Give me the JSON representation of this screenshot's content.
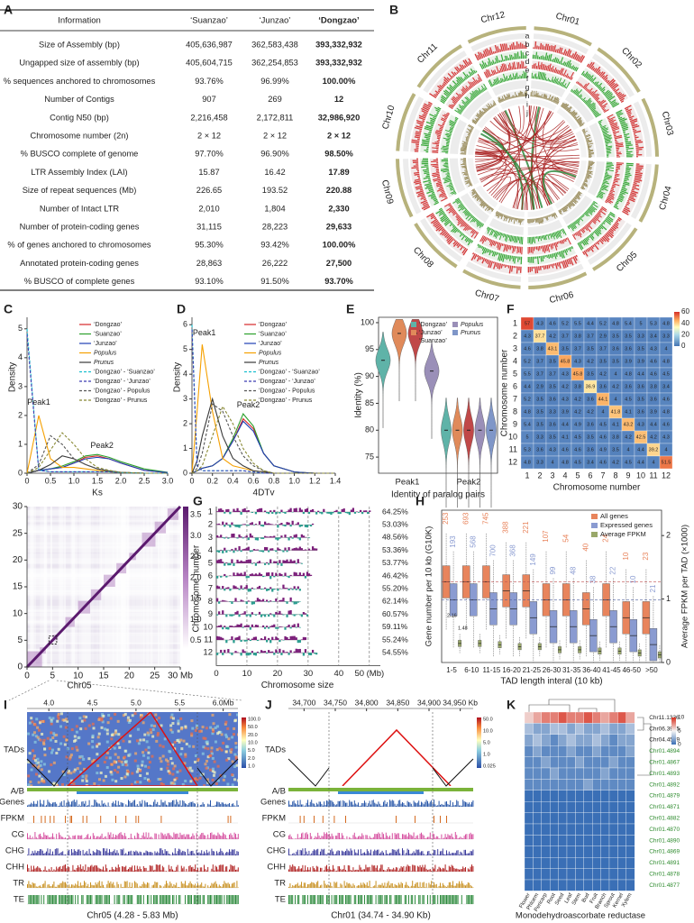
{
  "panel_labels": [
    "A",
    "B",
    "C",
    "D",
    "E",
    "F",
    "G",
    "H",
    "I",
    "J",
    "K"
  ],
  "table": {
    "header": [
      "Information",
      "‘Suanzao’",
      "‘Junzao’",
      "‘Dongzao’"
    ],
    "rows": [
      [
        "Size of Assembly (bp)",
        "405,636,987",
        "362,583,438",
        "393,332,932"
      ],
      [
        "Ungapped size of assembly (bp)",
        "405,604,715",
        "362,254,853",
        "393,332,932"
      ],
      [
        "% sequences anchored to chromosomes",
        "93.76%",
        "96.99%",
        "100.00%"
      ],
      [
        "Number of Contigs",
        "907",
        "269",
        "12"
      ],
      [
        "Contig N50 (bp)",
        "2,216,458",
        "2,172,811",
        "32,986,920"
      ],
      [
        "Chromosome number (2n)",
        "2 × 12",
        "2 × 12",
        "2 × 12"
      ],
      [
        "% BUSCO complete of genome",
        "97.70%",
        "96.90%",
        "98.50%"
      ],
      [
        "LTR Assembly Index (LAI)",
        "15.87",
        "16.42",
        "17.89"
      ],
      [
        "Size of repeat sequences (Mb)",
        "226.65",
        "193.52",
        "220.88"
      ],
      [
        "Number of Intact LTR",
        "2,010",
        "1,804",
        "2,330"
      ],
      [
        "Number of protein-coding genes",
        "31,115",
        "28,223",
        "29,633"
      ],
      [
        "% of genes anchored to chromosomes",
        "95.30%",
        "93.42%",
        "100.00%"
      ],
      [
        "Annotated protein-coding genes",
        "28,863",
        "26,222",
        "27,500"
      ],
      [
        "% BUSCO of complete genes",
        "93.10%",
        "91.50%",
        "93.70%"
      ]
    ]
  },
  "circos": {
    "chromosomes": [
      "Chr01",
      "Chr02",
      "Chr03",
      "Chr04",
      "Chr05",
      "Chr06",
      "Chr07",
      "Chr08",
      "Chr09",
      "Chr10",
      "Chr11",
      "Chr12"
    ],
    "tracks": [
      "a",
      "b",
      "c",
      "d",
      "e",
      "f",
      "g",
      "h",
      "i",
      "j"
    ]
  },
  "ks": {
    "type": "line",
    "xlabel": "Ks",
    "ylabel": "Density",
    "x": [
      0,
      0.25,
      0.5,
      0.75,
      1,
      1.25,
      1.5,
      1.75,
      2,
      2.5,
      3
    ],
    "xlim": [
      0,
      3
    ],
    "xticks": [
      0,
      0.5,
      {
        "value": 1,
        "label": "1.0"
      },
      1.5,
      {
        "value": 2,
        "label": "2.0"
      },
      2.5,
      {
        "value": 3,
        "label": "3.0"
      }
    ],
    "ylim": [
      0,
      5.4
    ],
    "yticks": [
      0,
      1,
      2,
      3,
      4,
      5
    ],
    "annotations": [
      "Peak1",
      "Peak2"
    ],
    "series": [
      {
        "name": "‘Dongzao’",
        "color": "#d62728",
        "values": [
          0,
          0.1,
          0.15,
          0.2,
          0.35,
          0.55,
          0.6,
          0.5,
          0.35,
          0.1,
          0.02
        ]
      },
      {
        "name": "‘Suanzao’",
        "color": "#2ca02c",
        "values": [
          0,
          0.1,
          0.15,
          0.25,
          0.4,
          0.6,
          0.65,
          0.55,
          0.4,
          0.15,
          0.03
        ]
      },
      {
        "name": "‘Junzao’",
        "color": "#1f3fb4",
        "values": [
          0,
          0.1,
          0.15,
          0.2,
          0.35,
          0.5,
          0.55,
          0.5,
          0.35,
          0.1,
          0.02
        ]
      },
      {
        "name": "Populus",
        "color": "#f5a000",
        "italic": true,
        "values": [
          0,
          2.0,
          0.5,
          0.2,
          0.2,
          0.15,
          0.1,
          0.05,
          0.02,
          0,
          0
        ]
      },
      {
        "name": "Prunus",
        "color": "#3a3a3a",
        "italic": true,
        "values": [
          0,
          0.1,
          0.3,
          0.6,
          0.5,
          0.3,
          0.15,
          0.08,
          0.03,
          0,
          0
        ]
      },
      {
        "name": "‘Dongzao’ - ‘Suanzao’",
        "color": "#17becf",
        "dash": true,
        "values": [
          5,
          0.1,
          0.05,
          0.05,
          0.05,
          0.05,
          0.05,
          0.05,
          0.02,
          0,
          0
        ]
      },
      {
        "name": "‘Dongzao’ - ‘Junzao’",
        "color": "#3b3bb0",
        "dash": true,
        "values": [
          4.8,
          0.1,
          0.05,
          0.05,
          0.05,
          0.05,
          0.05,
          0.05,
          0.02,
          0,
          0
        ]
      },
      {
        "name": "‘Dongzao’ - Populus",
        "color": "#555555",
        "dash": true,
        "values": [
          0,
          0.3,
          1.3,
          1.0,
          0.5,
          0.3,
          0.15,
          0.08,
          0.03,
          0,
          0
        ]
      },
      {
        "name": "‘Dongzao’ - Prunus",
        "color": "#888833",
        "dash": true,
        "values": [
          0,
          0.2,
          0.8,
          1.4,
          1.0,
          0.5,
          0.2,
          0.1,
          0.03,
          0,
          0
        ]
      }
    ]
  },
  "dtv": {
    "type": "line",
    "xlabel": "4DTv",
    "ylabel": "Density",
    "x": [
      0,
      0.05,
      0.1,
      0.2,
      0.3,
      0.4,
      0.5,
      0.6,
      0.7,
      0.8,
      1.0,
      1.2,
      1.4
    ],
    "xlim": [
      0,
      1.4
    ],
    "xticks": [
      0,
      0.2,
      0.4,
      0.6,
      0.8,
      {
        "value": 1,
        "label": "1.0"
      },
      1.2,
      1.4
    ],
    "ylim": [
      0,
      6.3
    ],
    "yticks": [
      0,
      1,
      2,
      3,
      4,
      5,
      6
    ],
    "annotations": [
      "Peak1",
      "Peak2"
    ],
    "series": [
      {
        "name": "‘Dongzao’",
        "color": "#d62728",
        "values": [
          0,
          0.1,
          0.2,
          0.3,
          0.6,
          1.3,
          2.2,
          1.8,
          0.8,
          0.3,
          0.05,
          0,
          0
        ]
      },
      {
        "name": "‘Suanzao’",
        "color": "#2ca02c",
        "values": [
          0,
          0.1,
          0.2,
          0.3,
          0.6,
          1.4,
          2.4,
          1.9,
          0.8,
          0.3,
          0.05,
          0,
          0
        ]
      },
      {
        "name": "‘Junzao’",
        "color": "#1f3fb4",
        "values": [
          0,
          0.1,
          0.2,
          0.3,
          0.6,
          1.3,
          2.1,
          1.7,
          0.8,
          0.3,
          0.05,
          0,
          0
        ]
      },
      {
        "name": "Populus",
        "color": "#f5a000",
        "italic": true,
        "values": [
          0,
          2.5,
          5.2,
          2.5,
          0.6,
          0.3,
          0.2,
          0.1,
          0.05,
          0,
          0,
          0,
          0
        ]
      },
      {
        "name": "Prunus",
        "color": "#3a3a3a",
        "italic": true,
        "values": [
          0,
          0.5,
          1.5,
          3.0,
          1.5,
          0.6,
          0.3,
          0.1,
          0.05,
          0,
          0,
          0,
          0
        ]
      },
      {
        "name": "‘Dongzao’ - ‘Suanzao’",
        "color": "#17becf",
        "dash": true,
        "values": [
          6,
          0.3,
          0.1,
          0.1,
          0.1,
          0.1,
          0.1,
          0.05,
          0,
          0,
          0,
          0,
          0
        ]
      },
      {
        "name": "‘Dongzao’ - ‘Junzao’",
        "color": "#3b3bb0",
        "dash": true,
        "values": [
          5.8,
          0.3,
          0.1,
          0.1,
          0.1,
          0.1,
          0.1,
          0.05,
          0,
          0,
          0,
          0,
          0
        ]
      },
      {
        "name": "‘Dongzao’ - Populus",
        "color": "#555555",
        "dash": true,
        "values": [
          0,
          0.2,
          0.8,
          2.8,
          2.5,
          1.5,
          0.7,
          0.3,
          0.1,
          0,
          0,
          0,
          0
        ]
      },
      {
        "name": "‘Dongzao’ - Prunus",
        "color": "#888833",
        "dash": true,
        "values": [
          0,
          0.1,
          0.3,
          1.5,
          2.7,
          2.0,
          1.0,
          0.4,
          0.1,
          0,
          0,
          0,
          0
        ]
      }
    ]
  },
  "identity": {
    "type": "violin",
    "ylabel": "Identity (%)",
    "xlabel": "Identity of paralog pairs",
    "groups": [
      "Peak1",
      "Peak2"
    ],
    "ylim": [
      72,
      101
    ],
    "yticks": [
      75,
      80,
      85,
      90,
      95,
      100
    ],
    "series": [
      {
        "name": "‘Dongzao’",
        "color": "#5fb3a8",
        "values": [
          93,
          80
        ]
      },
      {
        "name": "‘Junzao’",
        "color": "#e08a5a",
        "values": [
          98,
          80
        ]
      },
      {
        "name": "‘Suanzao’",
        "color": "#c04848",
        "values": [
          98,
          80
        ]
      },
      {
        "name": "Populus",
        "color": "#9a8fb8",
        "italic": true,
        "values": [
          91,
          80
        ]
      },
      {
        "name": "Prunus",
        "color": "#7f96c8",
        "italic": true,
        "values": [
          null,
          80
        ]
      }
    ]
  },
  "synteny": {
    "type": "heatmap",
    "xlabel": "Chromosome number",
    "ylabel": "Chromosome number",
    "labels": [
      1,
      2,
      3,
      4,
      5,
      6,
      7,
      8,
      9,
      10,
      11,
      12
    ],
    "clim": [
      0,
      60
    ],
    "colorbar_ticks": [
      0,
      20,
      40,
      60
    ],
    "matrix": [
      [
        57.0,
        4.3,
        4.6,
        5.2,
        5.5,
        4.4,
        5.2,
        4.8,
        5.4,
        5.0,
        5.3,
        4.8
      ],
      [
        4.3,
        37.7,
        4.2,
        3.7,
        3.8,
        3.7,
        2.9,
        3.5,
        3.5,
        3.3,
        3.4,
        3.3
      ],
      [
        4.6,
        3.8,
        43.1,
        3.5,
        3.7,
        3.5,
        3.7,
        3.6,
        3.6,
        3.5,
        4.3,
        4.0
      ],
      [
        5.2,
        3.7,
        3.5,
        45.8,
        4.3,
        4.2,
        3.5,
        3.5,
        3.9,
        3.9,
        4.6,
        4.8
      ],
      [
        5.5,
        3.7,
        3.7,
        4.3,
        45.8,
        3.5,
        4.2,
        4.0,
        4.8,
        4.4,
        4.6,
        4.5
      ],
      [
        4.4,
        2.9,
        3.5,
        4.2,
        3.8,
        36.9,
        3.6,
        4.2,
        3.6,
        3.6,
        3.8,
        3.4
      ],
      [
        5.2,
        3.5,
        3.6,
        4.3,
        4.2,
        3.6,
        44.1,
        4.0,
        4.5,
        3.5,
        3.6,
        4.6
      ],
      [
        4.8,
        3.5,
        3.3,
        3.9,
        4.2,
        4.2,
        4.0,
        41.8,
        4.1,
        3.6,
        3.9,
        4.8
      ],
      [
        5.4,
        3.5,
        3.6,
        4.4,
        4.9,
        3.6,
        4.5,
        4.1,
        43.2,
        4.3,
        4.4,
        4.6
      ],
      [
        5.0,
        3.3,
        3.5,
        4.1,
        4.5,
        3.5,
        4.6,
        3.8,
        4.2,
        42.5,
        4.2,
        4.3
      ],
      [
        5.3,
        3.6,
        4.3,
        4.6,
        4.6,
        3.6,
        4.9,
        3.5,
        4.0,
        4.4,
        39.2,
        4.0
      ],
      [
        4.8,
        3.3,
        4.0,
        4.8,
        4.5,
        3.4,
        4.6,
        4.2,
        4.5,
        4.4,
        4.0,
        51.5
      ]
    ]
  },
  "hic": {
    "xlabel": "Chr05",
    "lim": [
      0,
      30
    ],
    "xticks": [
      0,
      5,
      10,
      15,
      20,
      25,
      {
        "value": 30,
        "label": "30 Mb"
      }
    ],
    "yticks": [
      0,
      5,
      10,
      15,
      20,
      25,
      30
    ],
    "clim": [
      0.3,
      3.7
    ],
    "colorbar_ticks": [
      0.5,
      {
        "value": 1,
        "label": "1.0"
      },
      1.5,
      {
        "value": 2,
        "label": "2.0"
      },
      2.5,
      {
        "value": 3,
        "label": "3.0"
      },
      3.5
    ]
  },
  "compartments": {
    "xlabel": "Chromosome size",
    "ylabel": "Chromosome number",
    "xlim": [
      0,
      53
    ],
    "xticks": [
      0,
      10,
      20,
      30,
      40,
      {
        "value": 50,
        "label": "50 (Mb)"
      }
    ],
    "rows": [
      1,
      2,
      3,
      4,
      5,
      6,
      7,
      8,
      9,
      10,
      11,
      12
    ],
    "percentages": [
      "64.25%",
      "53.03%",
      "48.56%",
      "53.36%",
      "53.77%",
      "46.42%",
      "55.20%",
      "62.14%",
      "60.57%",
      "59.11%",
      "55.24%",
      "54.55%"
    ]
  },
  "tad": {
    "type": "box",
    "xlabel": "TAD length interal (10 kb)",
    "ylabel": "Gene number per 10 kb (G10K)",
    "y2label": "Average FPKM per TAD (×1000)",
    "categories": [
      "1-5",
      "6-10",
      "11-15",
      "16-20",
      "21-25",
      "26-30",
      "31-35",
      "36-40",
      "41-45",
      "46-50",
      ">50"
    ],
    "ylim": [
      0,
      17
    ],
    "y2lim": [
      0,
      2.4
    ],
    "y2ticks": [
      0,
      1,
      2
    ],
    "annotations": [
      "2.16",
      "1.48"
    ],
    "series": [
      {
        "name": "All genes",
        "color": "#e8845c",
        "values": [
          9,
          9,
          9,
          8,
          8,
          7,
          7,
          6,
          7,
          5,
          5
        ],
        "counts": [
          "253",
          "693",
          "745",
          "388",
          "221",
          "107",
          "54",
          "40",
          "24",
          "10",
          "23"
        ]
      },
      {
        "name": "Expressed genes",
        "color": "#8a9bd1",
        "values": [
          7,
          7,
          6,
          6,
          5,
          4,
          4,
          3,
          4,
          3,
          2
        ],
        "counts": [
          "193",
          "568",
          "700",
          "368",
          "149",
          "99",
          "48",
          "38",
          "22",
          "10",
          "21"
        ]
      },
      {
        "name": "Average FPKM",
        "color": "#9aa86a",
        "axis": "y2",
        "values": [
          0.3,
          0.3,
          0.28,
          0.25,
          0.25,
          0.2,
          0.2,
          0.18,
          0.18,
          0.15,
          0.12
        ]
      }
    ]
  },
  "locus_i": {
    "ticks": [
      "4.0",
      "4.5",
      "5.0",
      "5.5",
      "6.0Mb"
    ],
    "colorbar": [
      "100.0",
      "50.0",
      "20.0",
      "10.0",
      "5.0",
      "2.0",
      "1.0"
    ],
    "tracks": [
      "TADs",
      "A/B",
      "Genes",
      "FPKM",
      "CG",
      "CHG",
      "CHH",
      "TR",
      "TE"
    ],
    "caption": "Chr05 (4.28 - 5.83 Mb)"
  },
  "locus_j": {
    "ticks": [
      "34,700",
      "34,750",
      "34,800",
      "34,850",
      "34,900",
      "34,950 Kb"
    ],
    "colorbar": [
      "50.0",
      "10.0",
      "5.0",
      "1.0",
      "0.025"
    ],
    "tracks": [
      "TADs",
      "A/B",
      "Genes",
      "FPKM",
      "CG",
      "CHG",
      "CHH",
      "TR",
      "TE"
    ],
    "caption": "Chr01 (34.74 - 34.90 Kb)"
  },
  "expression": {
    "type": "heatmap",
    "xlabel": "Monodehydroascorbate reductase",
    "genes": [
      "Chr11.1336",
      "Chr06.3975",
      "Chr04.4579",
      "Chr01.4894",
      "Chr01.4867",
      "Chr01.4893",
      "Chr01.4892",
      "Chr01.4879",
      "Chr01.4871",
      "Chr01.4882",
      "Chr01.4870",
      "Chr01.4890",
      "Chr01.4869",
      "Chr01.4891",
      "Chr01.4878",
      "Chr01.4877"
    ],
    "gene_colors": [
      "#222",
      "#222",
      "#222",
      "#2e8b2e",
      "#2e8b2e",
      "#2e8b2e",
      "#2e8b2e",
      "#2e8b2e",
      "#2e8b2e",
      "#2e8b2e",
      "#2e8b2e",
      "#2e8b2e",
      "#2e8b2e",
      "#2e8b2e",
      "#2e8b2e",
      "#2e8b2e"
    ],
    "tissues": [
      "Flower",
      "Phloem",
      "Pericarp",
      "Root",
      "Seed",
      "Leaf",
      "Stem",
      "Bud",
      "Fruit",
      "Branch",
      "Sprout",
      "Kernel",
      "Xylem"
    ],
    "clim": [
      0,
      10
    ],
    "colorbar_ticks": [
      0,
      5,
      10
    ],
    "matrix": [
      [
        6,
        7,
        8,
        8,
        9,
        8,
        8,
        9,
        8,
        7,
        8,
        9,
        7
      ],
      [
        3,
        2,
        2,
        3,
        3,
        2,
        3,
        2,
        2,
        3,
        2,
        2,
        3
      ],
      [
        2,
        3,
        2,
        1,
        2,
        3,
        2,
        2,
        3,
        2,
        1,
        2,
        2
      ],
      [
        1,
        2,
        1,
        1,
        1,
        2,
        1,
        1,
        2,
        1,
        1,
        1,
        2
      ],
      [
        1,
        1,
        2,
        1,
        1,
        1,
        2,
        1,
        1,
        1,
        2,
        1,
        1
      ],
      [
        1,
        1,
        1,
        2,
        1,
        1,
        1,
        1,
        1,
        2,
        1,
        1,
        1
      ],
      [
        1,
        1,
        1,
        1,
        1,
        1,
        1,
        2,
        1,
        1,
        1,
        1,
        1
      ],
      [
        0,
        0,
        0,
        0,
        0,
        0,
        0,
        0,
        0,
        0,
        0,
        0,
        0
      ],
      [
        0,
        0,
        0,
        0,
        0,
        0,
        0,
        0,
        0,
        0,
        0,
        0,
        0
      ],
      [
        0,
        0,
        0,
        0,
        0,
        0,
        0,
        0,
        0,
        0,
        0,
        0,
        0
      ],
      [
        0,
        0,
        0,
        0,
        0,
        0,
        0,
        0,
        0,
        0,
        0,
        0,
        0
      ],
      [
        0,
        0,
        0,
        0,
        0,
        0,
        0,
        0,
        0,
        0,
        0,
        0,
        0
      ],
      [
        0,
        0,
        0,
        0,
        0,
        0,
        0,
        0,
        0,
        0,
        0,
        0,
        0
      ],
      [
        0,
        0,
        0,
        0,
        0,
        0,
        0,
        0,
        0,
        0,
        0,
        0,
        0
      ],
      [
        0,
        0,
        0,
        0,
        0,
        0,
        0,
        0,
        0,
        0,
        0,
        0,
        0
      ],
      [
        0,
        0,
        0,
        0,
        0,
        0,
        0,
        0,
        0,
        0,
        0,
        0,
        0
      ]
    ]
  }
}
